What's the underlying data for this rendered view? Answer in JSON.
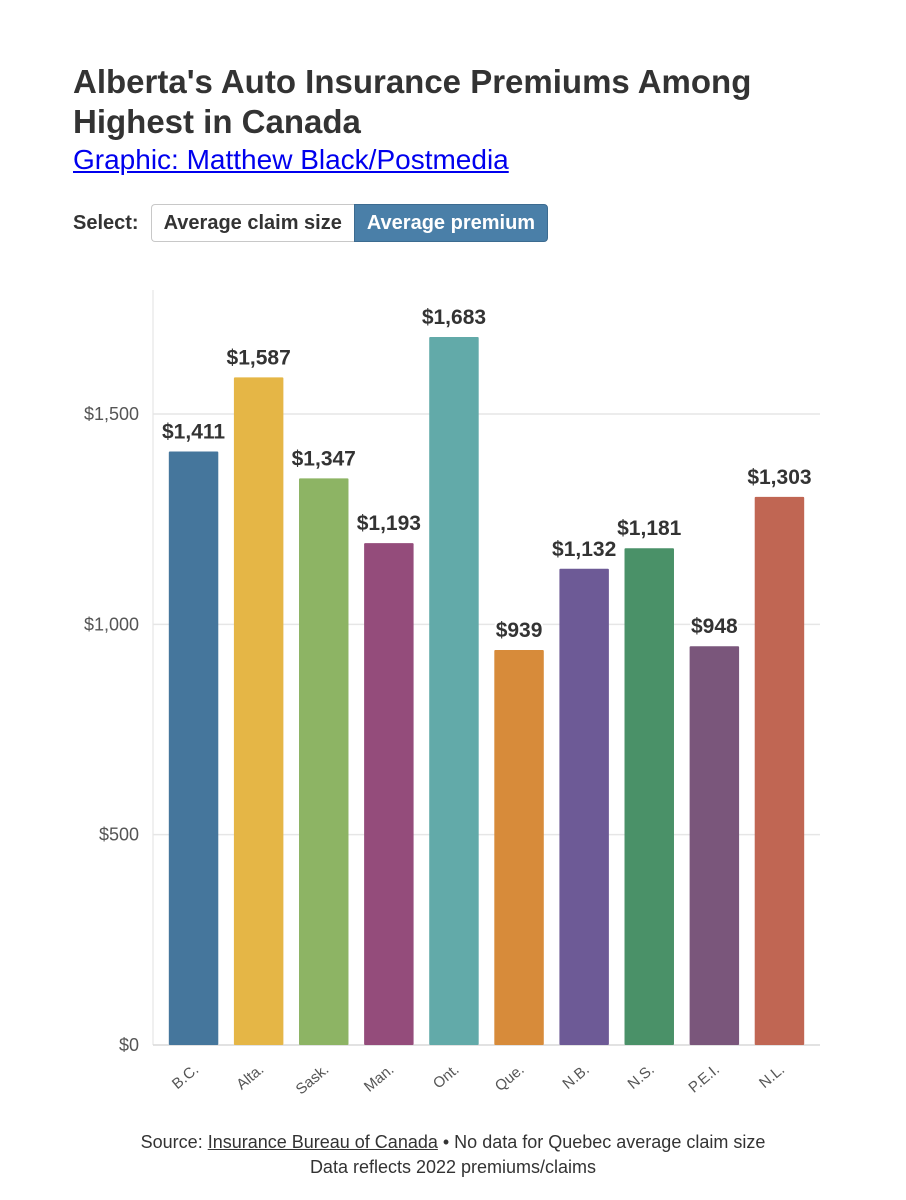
{
  "header": {
    "title": "Alberta's Auto Insurance Premiums Among Highest in Canada",
    "credit": "Graphic: Matthew Black/Postmedia"
  },
  "controls": {
    "select_label": "Select:",
    "options": [
      "Average claim size",
      "Average premium"
    ],
    "selected": "Average premium"
  },
  "chart_data": {
    "type": "bar",
    "title": "Alberta's Auto Insurance Premiums Among Highest in Canada",
    "xlabel": "",
    "ylabel": "",
    "categories": [
      "B.C.",
      "Alta.",
      "Sask.",
      "Man.",
      "Ont.",
      "Que.",
      "N.B.",
      "N.S.",
      "P.E.I.",
      "N.L."
    ],
    "values": [
      1411,
      1587,
      1347,
      1193,
      1683,
      939,
      1132,
      1181,
      948,
      1303
    ],
    "value_labels": [
      "$1,411",
      "$1,587",
      "$1,347",
      "$1,193",
      "$1,683",
      "$939",
      "$1,132",
      "$1,181",
      "$948",
      "$1,303"
    ],
    "colors": [
      "#45769c",
      "#e5b646",
      "#8db464",
      "#944c7b",
      "#62aaa9",
      "#d78b3a",
      "#6d5a96",
      "#4a9168",
      "#7a567b",
      "#c06653"
    ],
    "yticks": [
      0,
      500,
      1000,
      1500
    ],
    "ytick_labels": [
      "$0",
      "$500",
      "$1,000",
      "$1,500"
    ],
    "ylim": [
      0,
      1800
    ],
    "grid": true,
    "legend": "none"
  },
  "footer": {
    "source_prefix": "Source: ",
    "source_link": "Insurance Bureau of Canada",
    "source_suffix": " • No data for Quebec average claim size",
    "note": "Data reflects 2022 premiums/claims"
  }
}
